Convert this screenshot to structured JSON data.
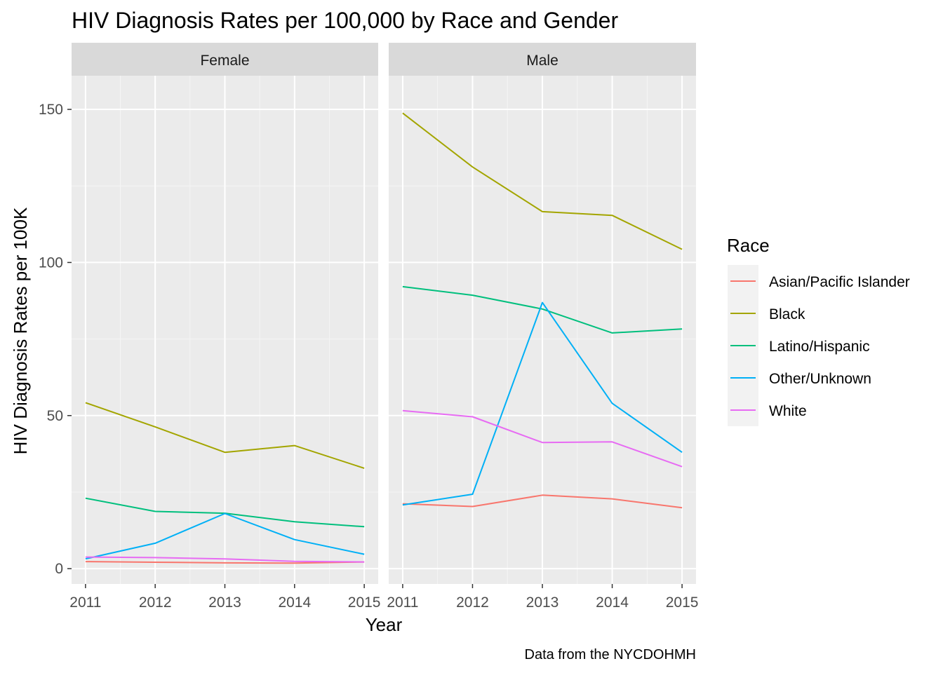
{
  "chart_data": {
    "type": "line",
    "title": "HIV Diagnosis Rates per 100,000 by Race and Gender",
    "xlabel": "Year",
    "ylabel": "HIV Diagnosis Rates per 100K",
    "caption": "Data from the NYCDOHMH",
    "x": [
      2011,
      2012,
      2013,
      2014,
      2015
    ],
    "x_tick_labels": [
      "2011",
      "2012",
      "2013",
      "2014",
      "2015"
    ],
    "xlim": [
      2010.8,
      2015.2
    ],
    "ylim": [
      -5,
      161
    ],
    "y_ticks": [
      0,
      50,
      100,
      150
    ],
    "y_tick_labels": [
      "0",
      "50",
      "100",
      "150"
    ],
    "grid": true,
    "legend": {
      "title": "Race",
      "position": "right",
      "entries": [
        {
          "name": "Asian/Pacific Islander",
          "color": "#F8766D"
        },
        {
          "name": "Black",
          "color": "#A3A500"
        },
        {
          "name": "Latino/Hispanic",
          "color": "#00BF7D"
        },
        {
          "name": "Other/Unknown",
          "color": "#00B0F6"
        },
        {
          "name": "White",
          "color": "#E76BF3"
        }
      ]
    },
    "panels": [
      {
        "label": "Female",
        "series": [
          {
            "name": "Asian/Pacific Islander",
            "values": [
              2.3,
              2.1,
              1.9,
              1.8,
              2.2
            ]
          },
          {
            "name": "Black",
            "values": [
              54.2,
              46.3,
              38.0,
              40.2,
              32.8
            ]
          },
          {
            "name": "Latino/Hispanic",
            "values": [
              23.0,
              18.7,
              18.1,
              15.3,
              13.7
            ]
          },
          {
            "name": "Other/Unknown",
            "values": [
              3.2,
              8.3,
              18.0,
              9.5,
              4.7
            ]
          },
          {
            "name": "White",
            "values": [
              3.8,
              3.6,
              3.2,
              2.4,
              2.2
            ]
          }
        ]
      },
      {
        "label": "Male",
        "series": [
          {
            "name": "Asian/Pacific Islander",
            "values": [
              21.2,
              20.3,
              24.0,
              22.8,
              19.9
            ]
          },
          {
            "name": "Black",
            "values": [
              148.8,
              131.2,
              116.6,
              115.4,
              104.3
            ]
          },
          {
            "name": "Latino/Hispanic",
            "values": [
              92.1,
              89.3,
              84.8,
              77.0,
              78.3
            ]
          },
          {
            "name": "Other/Unknown",
            "values": [
              20.8,
              24.3,
              86.9,
              54.0,
              38.0
            ]
          },
          {
            "name": "White",
            "values": [
              51.6,
              49.6,
              41.2,
              41.4,
              33.3
            ]
          }
        ]
      }
    ]
  }
}
